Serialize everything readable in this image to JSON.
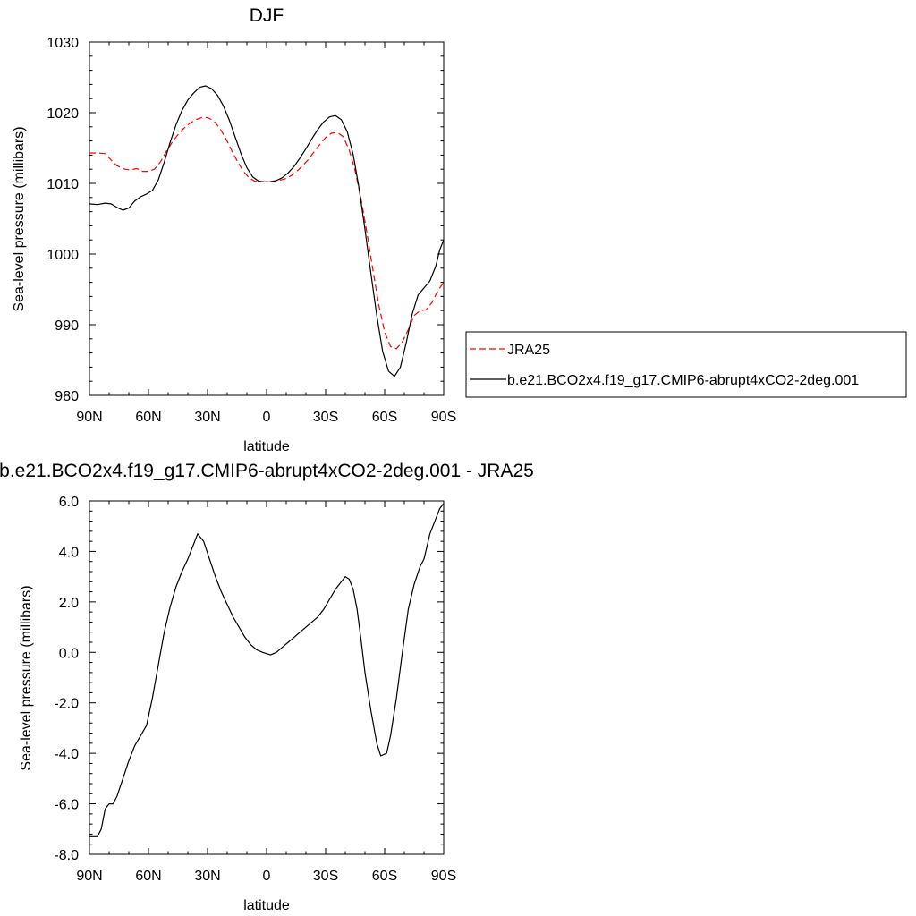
{
  "chart_data": [
    {
      "type": "line",
      "title": "DJF",
      "xlabel": "latitude",
      "ylabel": "Sea-level pressure (millibars)",
      "x_tick_labels": [
        "90N",
        "60N",
        "30N",
        "0",
        "30S",
        "60S",
        "90S"
      ],
      "x_tick_values": [
        90,
        60,
        30,
        0,
        -30,
        -60,
        -90
      ],
      "xlim": [
        90,
        -90
      ],
      "y_tick_labels": [
        "980",
        "990",
        "1000",
        "1010",
        "1020",
        "1030"
      ],
      "y_tick_values": [
        980,
        990,
        1000,
        1010,
        1020,
        1030
      ],
      "ylim": [
        980,
        1030
      ],
      "legend": {
        "placement": "outside-right"
      },
      "series": [
        {
          "name": "JRA25",
          "color": "#ff0000",
          "dash": "dashed",
          "points": [
            [
              90,
              1014.3
            ],
            [
              86,
              1014.3
            ],
            [
              82,
              1014.2
            ],
            [
              79,
              1013.3
            ],
            [
              76,
              1012.5
            ],
            [
              72,
              1012.0
            ],
            [
              69,
              1011.9
            ],
            [
              66,
              1012.1
            ],
            [
              63,
              1011.7
            ],
            [
              60,
              1011.7
            ],
            [
              57,
              1012.0
            ],
            [
              54,
              1013.0
            ],
            [
              51,
              1014.5
            ],
            [
              48,
              1015.8
            ],
            [
              45,
              1016.9
            ],
            [
              42,
              1017.8
            ],
            [
              39,
              1018.5
            ],
            [
              36,
              1019.0
            ],
            [
              33,
              1019.3
            ],
            [
              30,
              1019.3
            ],
            [
              27,
              1018.9
            ],
            [
              24,
              1017.9
            ],
            [
              21,
              1016.5
            ],
            [
              18,
              1014.8
            ],
            [
              15,
              1013.2
            ],
            [
              12,
              1011.8
            ],
            [
              9,
              1010.8
            ],
            [
              6,
              1010.3
            ],
            [
              3,
              1010.2
            ],
            [
              0,
              1010.2
            ],
            [
              -3,
              1010.3
            ],
            [
              -6,
              1010.4
            ],
            [
              -9,
              1010.6
            ],
            [
              -12,
              1011.0
            ],
            [
              -15,
              1011.6
            ],
            [
              -18,
              1012.4
            ],
            [
              -21,
              1013.3
            ],
            [
              -24,
              1014.4
            ],
            [
              -27,
              1015.5
            ],
            [
              -30,
              1016.5
            ],
            [
              -33,
              1017.1
            ],
            [
              -36,
              1017.2
            ],
            [
              -39,
              1016.6
            ],
            [
              -42,
              1014.7
            ],
            [
              -45,
              1011.8
            ],
            [
              -48,
              1007.8
            ],
            [
              -51,
              1003.0
            ],
            [
              -54,
              997.8
            ],
            [
              -57,
              992.8
            ],
            [
              -60,
              989.0
            ],
            [
              -63,
              986.9
            ],
            [
              -66,
              986.6
            ],
            [
              -69,
              987.6
            ],
            [
              -72,
              989.3
            ],
            [
              -75,
              991.3
            ],
            [
              -78,
              992.0
            ],
            [
              -81,
              992.1
            ],
            [
              -84,
              993.1
            ],
            [
              -87,
              994.8
            ],
            [
              -90,
              996.0
            ]
          ]
        },
        {
          "name": "b.e21.BCO2x4.f19_g17.CMIP6-abrupt4xCO2-2deg.001",
          "color": "#000000",
          "dash": "solid",
          "points": [
            [
              90,
              1007.1
            ],
            [
              86,
              1007.0
            ],
            [
              82,
              1007.2
            ],
            [
              79,
              1007.1
            ],
            [
              76,
              1006.6
            ],
            [
              73,
              1006.2
            ],
            [
              70,
              1006.5
            ],
            [
              67,
              1007.5
            ],
            [
              64,
              1008.1
            ],
            [
              61,
              1008.5
            ],
            [
              58,
              1009.0
            ],
            [
              55,
              1010.5
            ],
            [
              52,
              1013.0
            ],
            [
              49,
              1015.8
            ],
            [
              46,
              1018.3
            ],
            [
              43,
              1020.3
            ],
            [
              40,
              1021.8
            ],
            [
              37,
              1022.8
            ],
            [
              34,
              1023.6
            ],
            [
              31,
              1023.8
            ],
            [
              28,
              1023.4
            ],
            [
              25,
              1022.5
            ],
            [
              22,
              1021.0
            ],
            [
              19,
              1019.0
            ],
            [
              16,
              1016.6
            ],
            [
              13,
              1014.2
            ],
            [
              10,
              1012.2
            ],
            [
              7,
              1010.9
            ],
            [
              4,
              1010.3
            ],
            [
              1,
              1010.2
            ],
            [
              -2,
              1010.2
            ],
            [
              -5,
              1010.4
            ],
            [
              -8,
              1010.8
            ],
            [
              -11,
              1011.5
            ],
            [
              -14,
              1012.4
            ],
            [
              -17,
              1013.6
            ],
            [
              -20,
              1014.9
            ],
            [
              -23,
              1016.3
            ],
            [
              -26,
              1017.6
            ],
            [
              -29,
              1018.7
            ],
            [
              -32,
              1019.4
            ],
            [
              -35,
              1019.6
            ],
            [
              -38,
              1019.0
            ],
            [
              -41,
              1017.3
            ],
            [
              -44,
              1014.1
            ],
            [
              -47,
              1009.3
            ],
            [
              -50,
              1003.5
            ],
            [
              -53,
              997.3
            ],
            [
              -56,
              991.3
            ],
            [
              -59,
              986.2
            ],
            [
              -62,
              983.4
            ],
            [
              -65,
              982.7
            ],
            [
              -68,
              984.0
            ],
            [
              -71,
              987.5
            ],
            [
              -74,
              991.5
            ],
            [
              -77,
              994.2
            ],
            [
              -80,
              995.2
            ],
            [
              -83,
              996.2
            ],
            [
              -86,
              998.3
            ],
            [
              -88,
              1000.6
            ],
            [
              -90,
              1002.0
            ]
          ]
        }
      ]
    },
    {
      "type": "line",
      "title": "b.e21.BCO2x4.f19_g17.CMIP6-abrupt4xCO2-2deg.001 - JRA25",
      "xlabel": "latitude",
      "ylabel": "Sea-level pressure (millibars)",
      "x_tick_labels": [
        "90N",
        "60N",
        "30N",
        "0",
        "30S",
        "60S",
        "90S"
      ],
      "x_tick_values": [
        90,
        60,
        30,
        0,
        -30,
        -60,
        -90
      ],
      "xlim": [
        90,
        -90
      ],
      "y_tick_labels": [
        "-8.0",
        "-6.0",
        "-4.0",
        "-2.0",
        "0.0",
        "2.0",
        "4.0",
        "6.0"
      ],
      "y_tick_values": [
        -8,
        -6,
        -4,
        -2,
        0,
        2,
        4,
        6
      ],
      "ylim": [
        -8,
        6
      ],
      "series": [
        {
          "color": "#000000",
          "dash": "solid",
          "points": [
            [
              90,
              -7.3
            ],
            [
              86,
              -7.3
            ],
            [
              84,
              -7.0
            ],
            [
              82,
              -6.2
            ],
            [
              80,
              -6.0
            ],
            [
              78,
              -6.0
            ],
            [
              76,
              -5.7
            ],
            [
              73,
              -5.0
            ],
            [
              70,
              -4.3
            ],
            [
              67,
              -3.7
            ],
            [
              64,
              -3.3
            ],
            [
              61,
              -2.9
            ],
            [
              58,
              -1.8
            ],
            [
              55,
              -0.5
            ],
            [
              52,
              0.8
            ],
            [
              49,
              1.8
            ],
            [
              46,
              2.6
            ],
            [
              43,
              3.2
            ],
            [
              40,
              3.7
            ],
            [
              37,
              4.3
            ],
            [
              35,
              4.7
            ],
            [
              32,
              4.4
            ],
            [
              29,
              3.7
            ],
            [
              26,
              3.0
            ],
            [
              23,
              2.4
            ],
            [
              20,
              1.9
            ],
            [
              17,
              1.4
            ],
            [
              14,
              1.0
            ],
            [
              11,
              0.6
            ],
            [
              8,
              0.3
            ],
            [
              5,
              0.1
            ],
            [
              2,
              0.0
            ],
            [
              -2,
              -0.1
            ],
            [
              -5,
              0.0
            ],
            [
              -8,
              0.2
            ],
            [
              -11,
              0.4
            ],
            [
              -14,
              0.6
            ],
            [
              -17,
              0.8
            ],
            [
              -20,
              1.0
            ],
            [
              -23,
              1.2
            ],
            [
              -26,
              1.4
            ],
            [
              -29,
              1.7
            ],
            [
              -32,
              2.1
            ],
            [
              -35,
              2.5
            ],
            [
              -38,
              2.8
            ],
            [
              -40,
              3.0
            ],
            [
              -42,
              2.9
            ],
            [
              -44,
              2.5
            ],
            [
              -46,
              1.7
            ],
            [
              -48,
              0.5
            ],
            [
              -50,
              -0.8
            ],
            [
              -53,
              -2.3
            ],
            [
              -56,
              -3.6
            ],
            [
              -58,
              -4.1
            ],
            [
              -61,
              -4.0
            ],
            [
              -63,
              -3.3
            ],
            [
              -66,
              -1.8
            ],
            [
              -69,
              0.0
            ],
            [
              -72,
              1.7
            ],
            [
              -75,
              2.7
            ],
            [
              -78,
              3.4
            ],
            [
              -80,
              3.7
            ],
            [
              -83,
              4.7
            ],
            [
              -86,
              5.3
            ],
            [
              -88,
              5.7
            ],
            [
              -90,
              5.9
            ]
          ]
        }
      ]
    }
  ]
}
